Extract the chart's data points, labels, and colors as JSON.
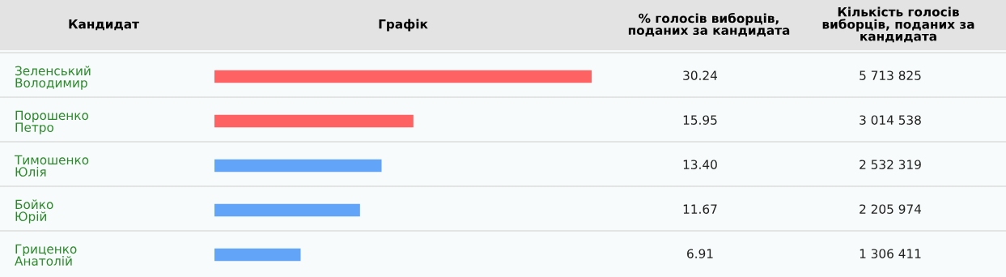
{
  "chart_data": {
    "type": "bar",
    "orientation": "horizontal",
    "title": "Графік",
    "ylabel": "Кандидат",
    "categories": [
      "Зеленський Володимир",
      "Порошенко Петро",
      "Тимошенко Юлія",
      "Бойко Юрій",
      "Гриценко Анатолій"
    ],
    "values": [
      30.24,
      15.95,
      13.4,
      11.67,
      6.91
    ],
    "colors": [
      "#ff6262",
      "#ff6262",
      "#62a4f8",
      "#62a4f8",
      "#62a4f8"
    ],
    "value_labels": [
      "30.24",
      "15.95",
      "13.40",
      "11.67",
      "6.91"
    ],
    "xlim": [
      0,
      30.24
    ],
    "tick_labels": "y",
    "grid": false,
    "legend": false,
    "annotations": [
      "% голосів виборців,\nподаних за кандидата",
      "Кількість голосів\nвиборців, поданих за\nкандидата",
      "5 713 825",
      "3 014 538",
      "2 532 319",
      "2 205 974",
      "1 306 411"
    ]
  }
}
